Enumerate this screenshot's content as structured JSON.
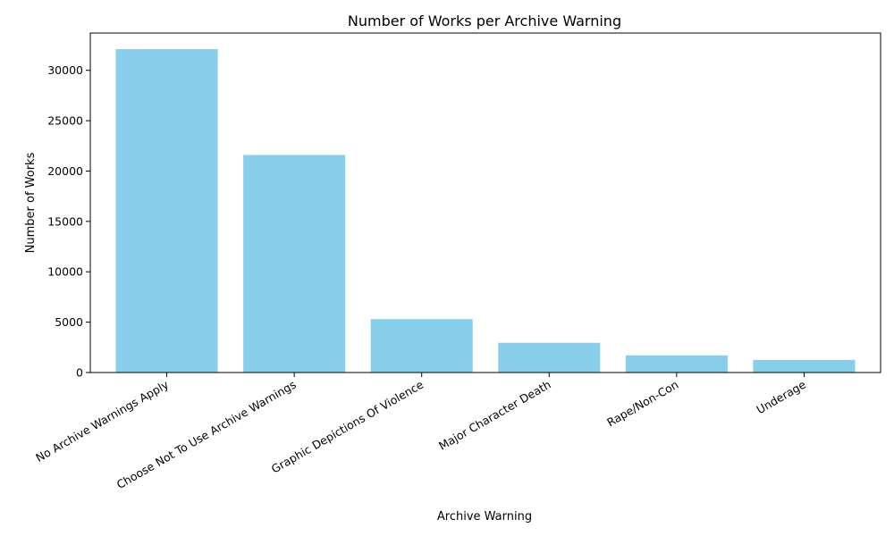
{
  "chart_data": {
    "type": "bar",
    "title": "Number of Works per Archive Warning",
    "xlabel": "Archive Warning",
    "ylabel": "Number of Works",
    "categories": [
      "No Archive Warnings Apply",
      "Choose Not To Use Archive Warnings",
      "Graphic Depictions Of Violence",
      "Major Character Death",
      "Rape/Non-Con",
      "Underage"
    ],
    "values": [
      32100,
      21600,
      5300,
      2950,
      1700,
      1250
    ],
    "ylim": [
      0,
      33700
    ],
    "yticks": [
      0,
      5000,
      10000,
      15000,
      20000,
      25000,
      30000
    ],
    "bar_color": "#87CEEB",
    "grid": false,
    "legend": "none"
  }
}
